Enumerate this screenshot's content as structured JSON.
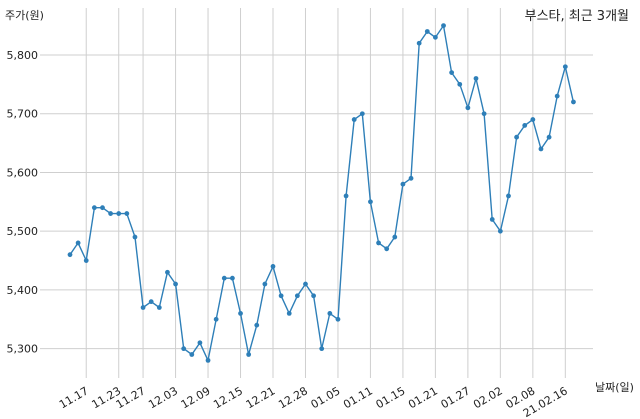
{
  "chart_data": {
    "type": "line",
    "title": "부스타, 최근 3개월",
    "xlabel": "날짜(일)",
    "ylabel": "주가(원)",
    "color": "#2e7fb8",
    "grid": true,
    "ylim": [
      5250,
      5880
    ],
    "y_ticks": [
      5300,
      5400,
      5500,
      5600,
      5700,
      5800
    ],
    "y_tick_labels": [
      "5,300",
      "5,400",
      "5,500",
      "5,600",
      "5,700",
      "5,800"
    ],
    "x_ticks": [
      {
        "index": 2,
        "label": "11.17"
      },
      {
        "index": 6,
        "label": "11.23"
      },
      {
        "index": 9,
        "label": "11.27"
      },
      {
        "index": 13,
        "label": "12.03"
      },
      {
        "index": 17,
        "label": "12.09"
      },
      {
        "index": 21,
        "label": "12.15"
      },
      {
        "index": 25,
        "label": "12.21"
      },
      {
        "index": 29,
        "label": "12.28"
      },
      {
        "index": 33,
        "label": "01.05"
      },
      {
        "index": 37,
        "label": "01.11"
      },
      {
        "index": 41,
        "label": "01.15"
      },
      {
        "index": 45,
        "label": "01.21"
      },
      {
        "index": 49,
        "label": "01.27"
      },
      {
        "index": 53,
        "label": "02.02"
      },
      {
        "index": 57,
        "label": "02.08"
      },
      {
        "index": 61,
        "label": "21.02.16"
      }
    ],
    "values": [
      5460,
      5480,
      5450,
      5540,
      5540,
      5530,
      5530,
      5530,
      5490,
      5370,
      5380,
      5370,
      5430,
      5410,
      5300,
      5290,
      5310,
      5280,
      5350,
      5420,
      5420,
      5360,
      5290,
      5340,
      5410,
      5440,
      5390,
      5360,
      5390,
      5410,
      5390,
      5300,
      5360,
      5350,
      5560,
      5690,
      5700,
      5550,
      5480,
      5470,
      5490,
      5580,
      5590,
      5820,
      5840,
      5830,
      5850,
      5770,
      5750,
      5710,
      5760,
      5700,
      5520,
      5500,
      5560,
      5660,
      5680,
      5690,
      5640,
      5660,
      5730,
      5780,
      5720
    ]
  }
}
